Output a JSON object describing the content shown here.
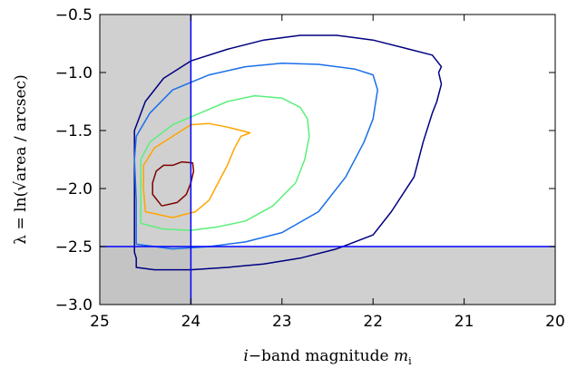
{
  "chart_data": {
    "type": "contour",
    "x_axis": {
      "label_prefix": "i",
      "label_middle": "−band magnitude ",
      "label_symbol": "m",
      "label_subscript": "i",
      "lim": [
        25,
        20
      ],
      "ticks": [
        25,
        24,
        23,
        22,
        21,
        20
      ],
      "tick_labels": [
        "25",
        "24",
        "23",
        "22",
        "21",
        "20"
      ]
    },
    "y_axis": {
      "label": "λ = ln(√area / arcsec)",
      "lim": [
        -3.0,
        -0.5
      ],
      "ticks": [
        -3.0,
        -2.5,
        -2.0,
        -1.5,
        -1.0,
        -0.5
      ],
      "tick_labels": [
        "−3.0",
        "−2.5",
        "−2.0",
        "−1.5",
        "−1.0",
        "−0.5"
      ]
    },
    "cuts": {
      "magnitude": 24.0,
      "lambda": -2.5
    },
    "excluded_regions": [
      {
        "x_range": [
          25,
          24
        ],
        "y_range": [
          -3.0,
          -0.5
        ]
      },
      {
        "x_range": [
          25,
          20
        ],
        "y_range": [
          -3.0,
          -2.5
        ]
      }
    ],
    "colors": {
      "shade": "#c0c0c0",
      "cut_line": "#0000ff",
      "frame": "#000000"
    },
    "contours": [
      {
        "color": "#000080",
        "points": [
          [
            24.62,
            -2.55
          ],
          [
            24.6,
            -2.6
          ],
          [
            24.6,
            -2.68
          ],
          [
            24.4,
            -2.7
          ],
          [
            24.0,
            -2.7
          ],
          [
            23.6,
            -2.68
          ],
          [
            23.2,
            -2.65
          ],
          [
            22.8,
            -2.6
          ],
          [
            22.4,
            -2.52
          ],
          [
            22.0,
            -2.4
          ],
          [
            21.8,
            -2.2
          ],
          [
            21.55,
            -1.9
          ],
          [
            21.45,
            -1.6
          ],
          [
            21.35,
            -1.35
          ],
          [
            21.3,
            -1.25
          ],
          [
            21.25,
            -1.1
          ],
          [
            21.28,
            -1.0
          ],
          [
            21.25,
            -0.95
          ],
          [
            21.35,
            -0.85
          ],
          [
            21.6,
            -0.8
          ],
          [
            22.0,
            -0.72
          ],
          [
            22.4,
            -0.68
          ],
          [
            22.8,
            -0.68
          ],
          [
            23.2,
            -0.72
          ],
          [
            23.6,
            -0.8
          ],
          [
            24.0,
            -0.9
          ],
          [
            24.3,
            -1.05
          ],
          [
            24.5,
            -1.25
          ],
          [
            24.62,
            -1.5
          ],
          [
            24.62,
            -1.8
          ],
          [
            24.62,
            -2.2
          ],
          [
            24.62,
            -2.55
          ]
        ]
      },
      {
        "color": "#1a6fe8",
        "points": [
          [
            24.6,
            -2.4
          ],
          [
            24.6,
            -2.48
          ],
          [
            24.2,
            -2.52
          ],
          [
            23.8,
            -2.5
          ],
          [
            23.4,
            -2.46
          ],
          [
            23.0,
            -2.38
          ],
          [
            22.6,
            -2.2
          ],
          [
            22.3,
            -1.9
          ],
          [
            22.1,
            -1.6
          ],
          [
            22.0,
            -1.4
          ],
          [
            21.95,
            -1.15
          ],
          [
            22.0,
            -1.02
          ],
          [
            22.2,
            -0.97
          ],
          [
            22.6,
            -0.93
          ],
          [
            23.0,
            -0.92
          ],
          [
            23.4,
            -0.95
          ],
          [
            23.8,
            -1.02
          ],
          [
            24.2,
            -1.15
          ],
          [
            24.45,
            -1.35
          ],
          [
            24.6,
            -1.55
          ],
          [
            24.62,
            -1.75
          ],
          [
            24.6,
            -2.1
          ],
          [
            24.6,
            -2.4
          ]
        ]
      },
      {
        "color": "#5af07a",
        "points": [
          [
            24.55,
            -2.3
          ],
          [
            24.3,
            -2.35
          ],
          [
            24.0,
            -2.36
          ],
          [
            23.7,
            -2.33
          ],
          [
            23.4,
            -2.28
          ],
          [
            23.1,
            -2.15
          ],
          [
            22.85,
            -1.95
          ],
          [
            22.75,
            -1.75
          ],
          [
            22.7,
            -1.55
          ],
          [
            22.72,
            -1.4
          ],
          [
            22.8,
            -1.3
          ],
          [
            23.0,
            -1.22
          ],
          [
            23.3,
            -1.2
          ],
          [
            23.6,
            -1.25
          ],
          [
            23.9,
            -1.35
          ],
          [
            24.2,
            -1.45
          ],
          [
            24.45,
            -1.6
          ],
          [
            24.55,
            -1.75
          ],
          [
            24.55,
            -2.0
          ],
          [
            24.55,
            -2.3
          ]
        ]
      },
      {
        "color": "#ffa500",
        "points": [
          [
            24.5,
            -2.2
          ],
          [
            24.2,
            -2.25
          ],
          [
            23.95,
            -2.2
          ],
          [
            23.8,
            -2.1
          ],
          [
            23.7,
            -1.95
          ],
          [
            23.6,
            -1.8
          ],
          [
            23.52,
            -1.65
          ],
          [
            23.45,
            -1.55
          ],
          [
            23.35,
            -1.52
          ],
          [
            23.45,
            -1.5
          ],
          [
            23.6,
            -1.47
          ],
          [
            23.8,
            -1.44
          ],
          [
            24.0,
            -1.45
          ],
          [
            24.2,
            -1.55
          ],
          [
            24.4,
            -1.65
          ],
          [
            24.52,
            -1.8
          ],
          [
            24.52,
            -2.0
          ],
          [
            24.5,
            -2.2
          ]
        ]
      },
      {
        "color": "#800000",
        "points": [
          [
            24.32,
            -2.15
          ],
          [
            24.15,
            -2.12
          ],
          [
            24.05,
            -2.05
          ],
          [
            24.0,
            -1.95
          ],
          [
            23.97,
            -1.85
          ],
          [
            23.98,
            -1.78
          ],
          [
            24.1,
            -1.77
          ],
          [
            24.2,
            -1.8
          ],
          [
            24.3,
            -1.8
          ],
          [
            24.38,
            -1.85
          ],
          [
            24.42,
            -1.95
          ],
          [
            24.42,
            -2.05
          ],
          [
            24.32,
            -2.15
          ]
        ]
      }
    ]
  }
}
